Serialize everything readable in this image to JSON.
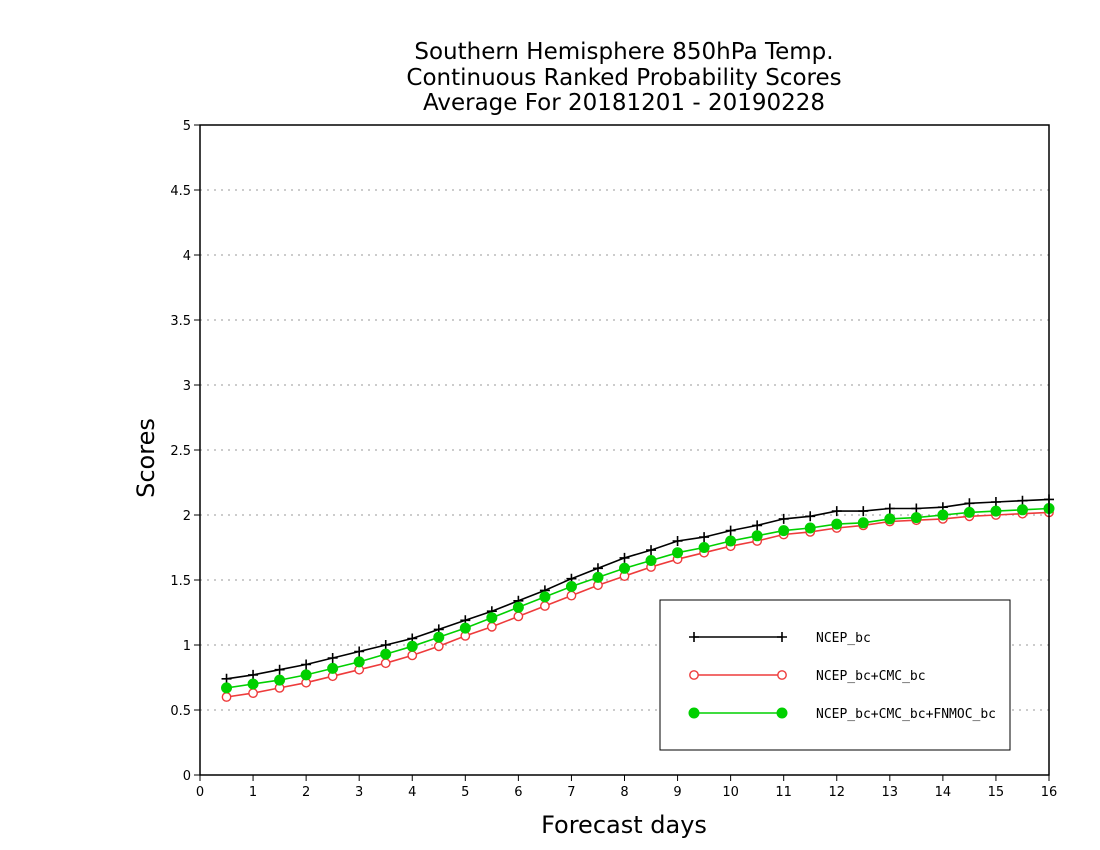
{
  "chart_data": {
    "type": "line",
    "title_lines": [
      "Southern Hemisphere 850hPa Temp.",
      "Continuous Ranked Probability Scores",
      "Average For 20181201 - 20190228"
    ],
    "xlabel": "Forecast days",
    "ylabel": "Scores",
    "xlim": [
      0,
      16
    ],
    "ylim": [
      0,
      5
    ],
    "xticks": [
      0,
      1,
      2,
      3,
      4,
      5,
      6,
      7,
      8,
      9,
      10,
      11,
      12,
      13,
      14,
      15,
      16
    ],
    "xtick_labels": [
      "0",
      "1",
      "2",
      "3",
      "4",
      "5",
      "6",
      "7",
      "8",
      "9",
      "10",
      "11",
      "12",
      "13",
      "14",
      "15",
      "16"
    ],
    "yticks": [
      0,
      0.5,
      1,
      1.5,
      2,
      2.5,
      3,
      3.5,
      4,
      4.5,
      5
    ],
    "ytick_labels": [
      "0",
      "0.5",
      "1",
      "1.5",
      "2",
      "2.5",
      "3",
      "3.5",
      "4",
      "4.5",
      "5"
    ],
    "grid": "horizontal dotted",
    "legend_position": "lower-right",
    "x": [
      0.5,
      1,
      1.5,
      2,
      2.5,
      3,
      3.5,
      4,
      4.5,
      5,
      5.5,
      6,
      6.5,
      7,
      7.5,
      8,
      8.5,
      9,
      9.5,
      10,
      10.5,
      11,
      11.5,
      12,
      12.5,
      13,
      13.5,
      14,
      14.5,
      15,
      15.5,
      16
    ],
    "series": [
      {
        "name": "NCEP_bc",
        "color": "#000000",
        "marker": "plus",
        "values": [
          0.74,
          0.77,
          0.81,
          0.85,
          0.9,
          0.95,
          1.0,
          1.05,
          1.12,
          1.19,
          1.26,
          1.34,
          1.42,
          1.51,
          1.59,
          1.67,
          1.73,
          1.8,
          1.83,
          1.88,
          1.92,
          1.97,
          1.99,
          2.03,
          2.03,
          2.05,
          2.05,
          2.06,
          2.09,
          2.1,
          2.11,
          2.12
        ]
      },
      {
        "name": "NCEP_bc+CMC_bc",
        "color": "#ee3b3b",
        "marker": "open-circle",
        "values": [
          0.6,
          0.63,
          0.67,
          0.71,
          0.76,
          0.81,
          0.86,
          0.92,
          0.99,
          1.07,
          1.14,
          1.22,
          1.3,
          1.38,
          1.46,
          1.53,
          1.6,
          1.66,
          1.71,
          1.76,
          1.8,
          1.85,
          1.87,
          1.9,
          1.92,
          1.95,
          1.96,
          1.97,
          1.99,
          2.0,
          2.01,
          2.02
        ]
      },
      {
        "name": "NCEP_bc+CMC_bc+FNMOC_bc",
        "color": "#00d000",
        "marker": "filled-circle",
        "values": [
          0.67,
          0.7,
          0.73,
          0.77,
          0.82,
          0.87,
          0.93,
          0.99,
          1.06,
          1.13,
          1.21,
          1.29,
          1.37,
          1.45,
          1.52,
          1.59,
          1.65,
          1.71,
          1.75,
          1.8,
          1.84,
          1.88,
          1.9,
          1.93,
          1.94,
          1.97,
          1.98,
          2.0,
          2.02,
          2.03,
          2.04,
          2.05
        ]
      }
    ]
  }
}
